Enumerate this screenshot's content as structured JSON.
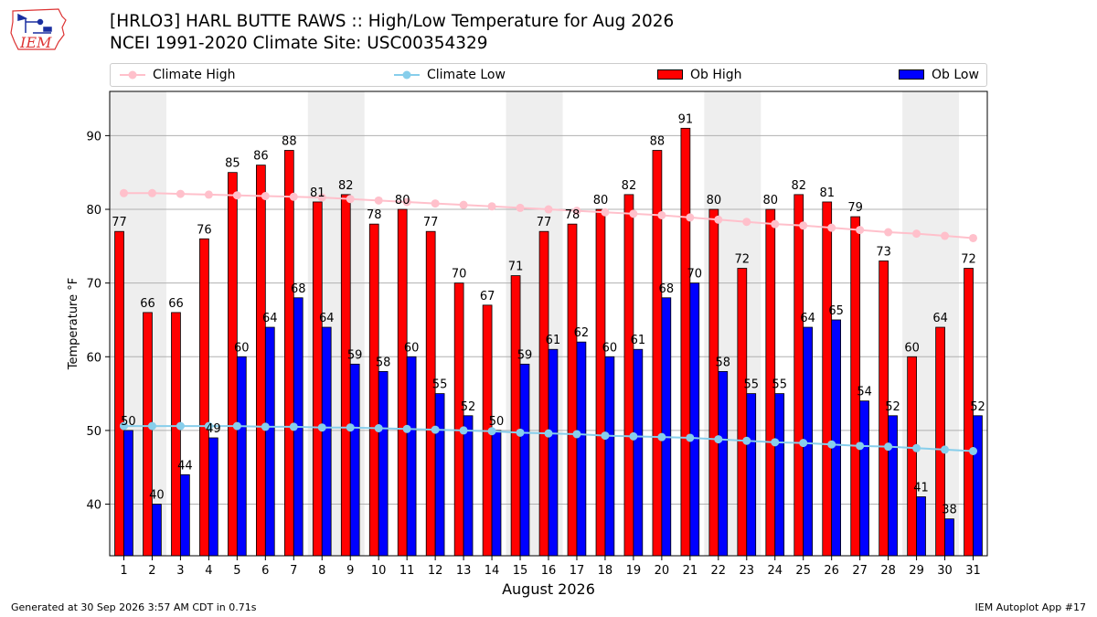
{
  "header": {
    "title_line1": "[HRLO3] HARL BUTTE RAWS :: High/Low Temperature for Aug 2026",
    "title_line2": "NCEI 1991-2020 Climate Site: USC00354329"
  },
  "logo": {
    "text": "IEM"
  },
  "footer": {
    "generated": "Generated at 30 Sep 2026 3:57 AM CDT in 0.71s",
    "app": "IEM Autoplot App #17"
  },
  "colors": {
    "ob_high": "#ff0000",
    "ob_low": "#0000ff",
    "climate_high": "#ffc0cb",
    "climate_low": "#87ceeb",
    "weekend_band": "#eeeeee",
    "grid": "#b0b0b0"
  },
  "chart_data": {
    "type": "bar",
    "xlabel": "August 2026",
    "ylabel": "Temperature °F",
    "ylim": [
      33,
      96
    ],
    "yticks": [
      40,
      50,
      60,
      70,
      80,
      90
    ],
    "grid": "horizontal",
    "legend_position": "top",
    "shaded_weekend_day_pairs": [
      [
        1,
        2
      ],
      [
        8,
        9
      ],
      [
        15,
        16
      ],
      [
        22,
        23
      ],
      [
        29,
        30
      ]
    ],
    "categories": [
      "1",
      "2",
      "3",
      "4",
      "5",
      "6",
      "7",
      "8",
      "9",
      "10",
      "11",
      "12",
      "13",
      "14",
      "15",
      "16",
      "17",
      "18",
      "19",
      "20",
      "21",
      "22",
      "23",
      "24",
      "25",
      "26",
      "27",
      "28",
      "29",
      "30",
      "31"
    ],
    "series": [
      {
        "name": "Ob High",
        "kind": "bar",
        "values": [
          77,
          66,
          66,
          76,
          85,
          86,
          88,
          81,
          82,
          78,
          80,
          77,
          70,
          67,
          71,
          77,
          78,
          80,
          82,
          88,
          91,
          80,
          72,
          80,
          82,
          81,
          79,
          73,
          60,
          64,
          72
        ]
      },
      {
        "name": "Ob Low",
        "kind": "bar",
        "values": [
          50,
          40,
          44,
          49,
          60,
          64,
          68,
          64,
          59,
          58,
          60,
          55,
          52,
          50,
          59,
          61,
          62,
          60,
          61,
          68,
          70,
          58,
          55,
          55,
          64,
          65,
          54,
          52,
          41,
          38,
          52
        ]
      },
      {
        "name": "Climate High",
        "kind": "line",
        "values": [
          82.2,
          82.2,
          82.1,
          82.0,
          81.9,
          81.8,
          81.7,
          81.6,
          81.4,
          81.2,
          81.0,
          80.8,
          80.6,
          80.4,
          80.2,
          80.0,
          79.8,
          79.6,
          79.4,
          79.2,
          78.9,
          78.6,
          78.3,
          78.0,
          77.8,
          77.5,
          77.2,
          76.9,
          76.7,
          76.4,
          76.1
        ]
      },
      {
        "name": "Climate Low",
        "kind": "line",
        "values": [
          50.6,
          50.6,
          50.6,
          50.6,
          50.6,
          50.5,
          50.5,
          50.4,
          50.4,
          50.3,
          50.2,
          50.1,
          50.0,
          49.9,
          49.7,
          49.6,
          49.5,
          49.3,
          49.2,
          49.1,
          49.0,
          48.8,
          48.6,
          48.4,
          48.3,
          48.1,
          47.9,
          47.8,
          47.6,
          47.4,
          47.2
        ]
      }
    ]
  }
}
